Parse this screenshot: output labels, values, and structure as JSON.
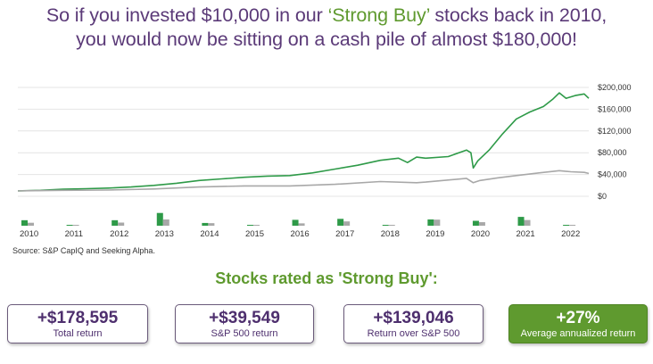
{
  "headline": {
    "line1_before": "So if you invested $10,000 in our ",
    "line1_accent": "‘Strong Buy’",
    "line1_after": " stocks back in 2010,",
    "line2": "you would now be sitting on a cash pile of almost $180,000!"
  },
  "source": "Source: S&P CapIQ and Seeking Alpha.",
  "section_title": "Stocks rated as 'Strong Buy':",
  "stats": [
    {
      "value": "+$178,595",
      "label": "Total return"
    },
    {
      "value": "+$39,549",
      "label": "S&P 500 return"
    },
    {
      "value": "+$139,046",
      "label": "Return over S&P 500"
    },
    {
      "value": "+27%",
      "label": "Average annualized return"
    }
  ],
  "colors": {
    "purple": "#5b3a78",
    "green": "#2e9a48",
    "gray": "#a8a8a8",
    "accent_green": "#5f9a2f"
  },
  "chart_data": {
    "type": "line",
    "x_range": [
      2010,
      2022.6
    ],
    "y_range": [
      0,
      200000
    ],
    "y_ticks": [
      {
        "value": 200000,
        "label": "$200,000"
      },
      {
        "value": 160000,
        "label": "$160,000"
      },
      {
        "value": 120000,
        "label": "$120,000"
      },
      {
        "value": 80000,
        "label": "$80,000"
      },
      {
        "value": 40000,
        "label": "$40,000"
      },
      {
        "value": 0,
        "label": "$0"
      }
    ],
    "x_ticks": [
      "2010",
      "2011",
      "2012",
      "2013",
      "2014",
      "2015",
      "2016",
      "2017",
      "2018",
      "2019",
      "2020",
      "2021",
      "2022"
    ],
    "grid": true,
    "series": [
      {
        "key": "strong_buy",
        "color": "#2e9a48",
        "points": [
          [
            2010.0,
            10000
          ],
          [
            2010.5,
            11000
          ],
          [
            2011.0,
            13000
          ],
          [
            2011.5,
            14000
          ],
          [
            2012.0,
            15000
          ],
          [
            2012.5,
            17000
          ],
          [
            2013.0,
            20000
          ],
          [
            2013.5,
            24000
          ],
          [
            2014.0,
            29000
          ],
          [
            2014.5,
            32000
          ],
          [
            2015.0,
            35000
          ],
          [
            2015.5,
            37000
          ],
          [
            2016.0,
            38000
          ],
          [
            2016.5,
            43000
          ],
          [
            2017.0,
            50000
          ],
          [
            2017.5,
            57000
          ],
          [
            2018.0,
            66000
          ],
          [
            2018.4,
            70000
          ],
          [
            2018.6,
            62000
          ],
          [
            2018.8,
            72000
          ],
          [
            2019.0,
            70000
          ],
          [
            2019.5,
            73000
          ],
          [
            2019.9,
            85000
          ],
          [
            2020.0,
            80000
          ],
          [
            2020.05,
            52000
          ],
          [
            2020.15,
            65000
          ],
          [
            2020.4,
            85000
          ],
          [
            2020.7,
            115000
          ],
          [
            2021.0,
            142000
          ],
          [
            2021.3,
            155000
          ],
          [
            2021.6,
            165000
          ],
          [
            2021.8,
            178000
          ],
          [
            2021.95,
            190000
          ],
          [
            2022.1,
            180000
          ],
          [
            2022.3,
            185000
          ],
          [
            2022.5,
            188000
          ],
          [
            2022.6,
            180000
          ]
        ]
      },
      {
        "key": "sp500",
        "color": "#a8a8a8",
        "points": [
          [
            2010.0,
            10000
          ],
          [
            2011.0,
            11000
          ],
          [
            2012.0,
            11500
          ],
          [
            2013.0,
            13500
          ],
          [
            2014.0,
            17000
          ],
          [
            2015.0,
            19000
          ],
          [
            2016.0,
            19000
          ],
          [
            2017.0,
            22000
          ],
          [
            2018.0,
            27000
          ],
          [
            2018.8,
            25000
          ],
          [
            2019.0,
            26000
          ],
          [
            2019.9,
            33000
          ],
          [
            2020.05,
            25000
          ],
          [
            2020.2,
            29000
          ],
          [
            2020.6,
            34000
          ],
          [
            2021.0,
            38000
          ],
          [
            2021.5,
            43000
          ],
          [
            2021.95,
            47000
          ],
          [
            2022.2,
            45000
          ],
          [
            2022.5,
            44000
          ],
          [
            2022.6,
            42000
          ]
        ]
      }
    ],
    "annual_returns": [
      {
        "year": "2010",
        "strong_buy": 28,
        "sp500": 15
      },
      {
        "year": "2011",
        "strong_buy": 2,
        "sp500": 2
      },
      {
        "year": "2012",
        "strong_buy": 28,
        "sp500": 16
      },
      {
        "year": "2013",
        "strong_buy": 65,
        "sp500": 32
      },
      {
        "year": "2014",
        "strong_buy": 14,
        "sp500": 13
      },
      {
        "year": "2015",
        "strong_buy": 4,
        "sp500": 1
      },
      {
        "year": "2016",
        "strong_buy": 30,
        "sp500": 12
      },
      {
        "year": "2017",
        "strong_buy": 35,
        "sp500": 22
      },
      {
        "year": "2018",
        "strong_buy": 1,
        "sp500": 0
      },
      {
        "year": "2019",
        "strong_buy": 32,
        "sp500": 31
      },
      {
        "year": "2020",
        "strong_buy": 25,
        "sp500": 18
      },
      {
        "year": "2021",
        "strong_buy": 45,
        "sp500": 29
      },
      {
        "year": "2022",
        "strong_buy": 1,
        "sp500": 0
      }
    ]
  }
}
